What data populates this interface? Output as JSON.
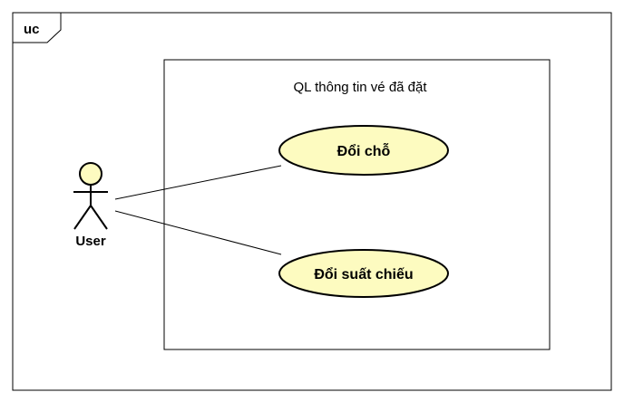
{
  "diagram": {
    "frame_tag": "uc",
    "system_boundary": {
      "title": "QL thông tin vé đã đặt"
    },
    "actors": [
      {
        "id": "user",
        "name": "User"
      }
    ],
    "use_cases": [
      {
        "id": "doi-cho",
        "label": "Đổi chỗ"
      },
      {
        "id": "doi-suat-chieu",
        "label": "Đổi suất chiếu"
      }
    ],
    "associations": [
      {
        "from": "user",
        "to": "doi-cho"
      },
      {
        "from": "user",
        "to": "doi-suat-chieu"
      }
    ],
    "colors": {
      "usecase_fill": "#fdfbc0",
      "actor_fill": "#fdfbc0",
      "stroke": "#000000"
    }
  }
}
